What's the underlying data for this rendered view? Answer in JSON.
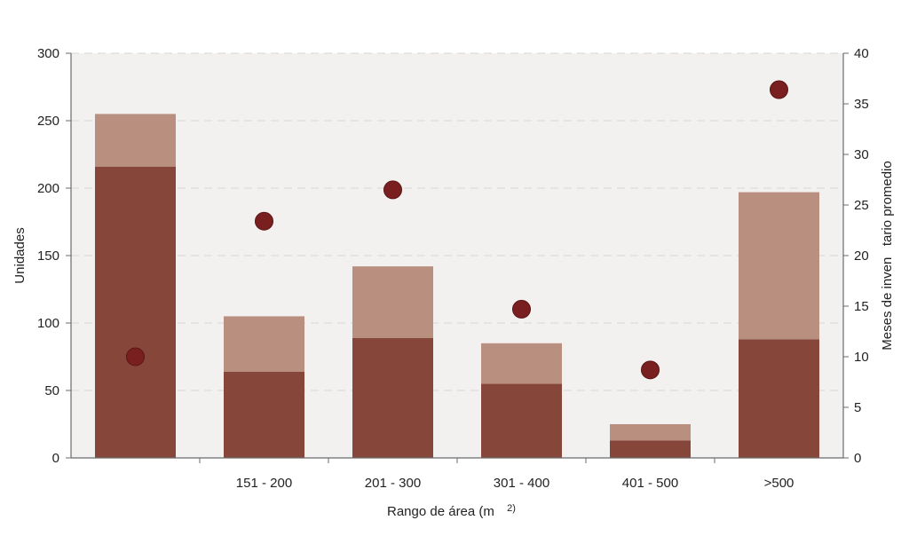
{
  "chart_data": {
    "type": "bar",
    "stacked": true,
    "title": "",
    "xlabel": "Rango de área (m",
    "xlabel_superscript": "2)",
    "ylabel_left": "Unidades",
    "ylabel_right": "Meses de inven   tario promedio",
    "categories": [
      "",
      "151 - 200",
      "201 - 300",
      "301 - 400",
      "401 - 500",
      ">500"
    ],
    "series": [
      {
        "values": [
          216,
          64,
          89,
          55,
          13,
          88
        ],
        "color": "#87463a",
        "axis": "left",
        "kind": "bar"
      },
      {
        "values": [
          39,
          41,
          53,
          30,
          12,
          109
        ],
        "color": "#b9907f",
        "axis": "left",
        "kind": "bar"
      },
      {
        "values": [
          10,
          23.4,
          26.5,
          14.7,
          8.7,
          36.4
        ],
        "color": "#7a1f1f",
        "axis": "right",
        "kind": "dot"
      }
    ],
    "ylim_left": [
      0,
      300
    ],
    "yticks_left": [
      0,
      50,
      100,
      150,
      200,
      250,
      300
    ],
    "ylim_right": [
      0,
      40
    ],
    "yticks_right": [
      0,
      5,
      10,
      15,
      20,
      25,
      30,
      35,
      40
    ],
    "grid": true,
    "legend": "none",
    "plot_background": "#f3f1f0",
    "grid_color": "#d6d6d6"
  }
}
